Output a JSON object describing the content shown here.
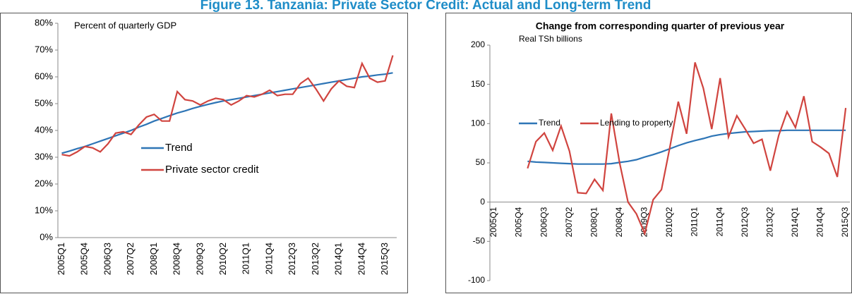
{
  "title": "Figure 13. Tanzania: Private Sector Credit: Actual and Long-term Trend",
  "chart_data": [
    {
      "type": "line",
      "annotation": "Percent of quarterly  GDP",
      "categories": [
        "2005Q1",
        null,
        null,
        "2005Q4",
        null,
        null,
        "2006Q3",
        null,
        null,
        "2007Q2",
        null,
        null,
        "2008Q1",
        null,
        null,
        "2008Q4",
        null,
        null,
        "2009Q3",
        null,
        null,
        "2010Q2",
        null,
        null,
        "2011Q1",
        null,
        null,
        "2011Q4",
        null,
        null,
        "2012Q3",
        null,
        null,
        "2013Q2",
        null,
        null,
        "2014Q1",
        null,
        null,
        "2014Q4",
        null,
        null,
        "2015Q3",
        null
      ],
      "series": [
        {
          "name": "Trend",
          "color": "#2e75b6",
          "values": [
            31.5,
            32.3,
            33.2,
            34,
            35,
            36,
            37,
            38,
            39,
            40,
            41.2,
            42.3,
            43.5,
            44.5,
            45.5,
            46.5,
            47.3,
            48.2,
            49,
            49.7,
            50.4,
            51,
            51.5,
            52,
            52.5,
            53,
            53.5,
            54,
            54.5,
            55,
            55.5,
            56,
            56.5,
            57,
            57.5,
            58,
            58.5,
            59,
            59.5,
            60,
            60.3,
            60.7,
            61,
            61.5
          ]
        },
        {
          "name": "Private sector credit",
          "color": "#d0443f",
          "values": [
            31,
            30.5,
            32,
            34,
            33.5,
            32,
            35,
            39,
            39.5,
            38.5,
            42,
            45,
            46,
            43.5,
            43.5,
            54.5,
            51.5,
            51,
            49.5,
            51,
            52,
            51.5,
            49.5,
            51,
            53,
            52.5,
            53.5,
            55,
            53,
            53.5,
            53.5,
            57.5,
            59.5,
            55.5,
            51,
            55.5,
            58.5,
            56.5,
            56,
            65,
            59.5,
            58,
            58.5,
            68
          ]
        }
      ],
      "ylim": [
        0,
        80
      ],
      "yticks": [
        {
          "value": 0,
          "label": "0%"
        },
        {
          "value": 10,
          "label": "10%"
        },
        {
          "value": 20,
          "label": "20%"
        },
        {
          "value": 30,
          "label": "30%"
        },
        {
          "value": 40,
          "label": "40%"
        },
        {
          "value": 50,
          "label": "50%"
        },
        {
          "value": 60,
          "label": "60%"
        },
        {
          "value": 70,
          "label": "70%"
        },
        {
          "value": 80,
          "label": "80%"
        }
      ],
      "legend": "center-left",
      "grid": false
    },
    {
      "type": "line",
      "title": "Change from corresponding quarter of previous year",
      "subtitle": "Real TSh billions",
      "categories": [
        "2005Q1",
        null,
        null,
        "2005Q4",
        null,
        null,
        "2006Q3",
        null,
        null,
        "2007Q2",
        null,
        null,
        "2008Q1",
        null,
        null,
        "2008Q4",
        null,
        null,
        "2009Q3",
        null,
        null,
        "2010Q2",
        null,
        null,
        "2011Q1",
        null,
        null,
        "2011Q4",
        null,
        null,
        "2012Q3",
        null,
        null,
        "2013Q2",
        null,
        null,
        "2014Q1",
        null,
        null,
        "2014Q4",
        null,
        null,
        "2015Q3"
      ],
      "series": [
        {
          "name": "Trend",
          "color": "#2e75b6",
          "values": [
            null,
            null,
            null,
            null,
            52,
            51,
            50.5,
            50,
            49.5,
            49,
            48.5,
            48.5,
            48.5,
            48.5,
            49,
            50.5,
            52,
            54,
            57.5,
            60.5,
            64,
            68,
            72,
            75.5,
            78.5,
            81,
            84,
            86,
            87.5,
            88.5,
            89.5,
            90,
            90.5,
            91,
            91,
            91.5,
            91.5,
            91.5,
            91.5,
            91.5,
            91.5,
            91.5,
            91.5
          ]
        },
        {
          "name": "Lending to property",
          "color": "#d0443f",
          "values": [
            null,
            null,
            null,
            null,
            43,
            77,
            88,
            66,
            97,
            65,
            12,
            11,
            29,
            15,
            113,
            50,
            0,
            -15,
            -40,
            3,
            16,
            70,
            128,
            87,
            178,
            145,
            93,
            158,
            83,
            110,
            93,
            75,
            80,
            40,
            85,
            115,
            95,
            135,
            77,
            70,
            62,
            32,
            120
          ]
        }
      ],
      "ylim": [
        -100,
        200
      ],
      "yticks": [
        -100,
        -50,
        0,
        50,
        100,
        150,
        200
      ],
      "legend": "top-left",
      "grid": false
    }
  ]
}
